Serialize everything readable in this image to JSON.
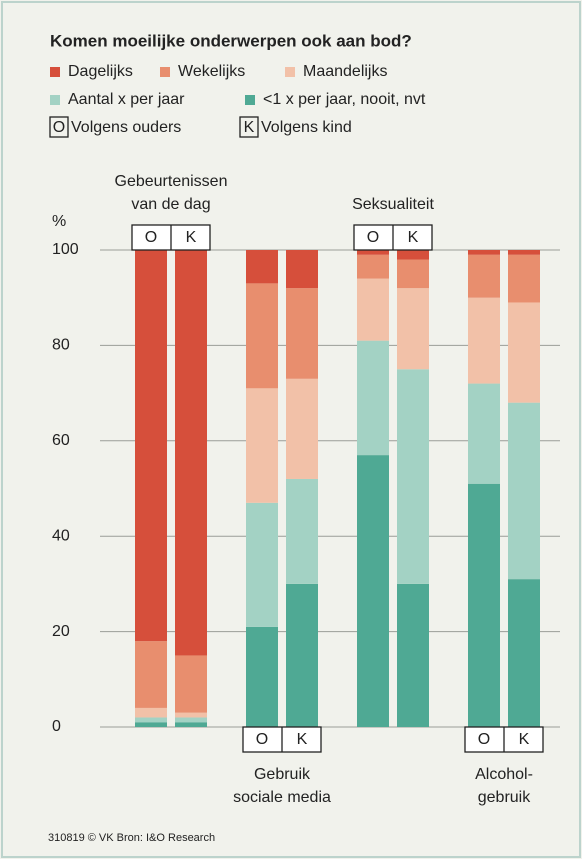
{
  "chart_data": {
    "type": "stacked_bar",
    "title": "Komen moeilijke onderwerpen ook aan bod?",
    "y_unit": "%",
    "ylim": [
      0,
      100
    ],
    "yticks": [
      0,
      20,
      40,
      60,
      80,
      100
    ],
    "grid": true,
    "subcategories": [
      "O",
      "K"
    ],
    "subcategory_names": [
      "Volgens ouders",
      "Volgens kind"
    ],
    "groups": [
      {
        "label": [
          "Gebeurtenissen",
          "van de dag"
        ],
        "label_position": "top"
      },
      {
        "label": [
          "Gebruik",
          "sociale media"
        ],
        "label_position": "bottom"
      },
      {
        "label": [
          "Seksualiteit"
        ],
        "label_position": "top"
      },
      {
        "label": [
          "Alcohol-",
          "gebruik"
        ],
        "label_position": "bottom"
      }
    ],
    "series": [
      {
        "name": "Dagelijks",
        "color": "#d64f3b",
        "values": [
          82,
          85,
          7,
          8,
          1,
          2,
          1,
          1
        ]
      },
      {
        "name": "Wekelijks",
        "color": "#e88e6e",
        "values": [
          14,
          12,
          22,
          19,
          5,
          6,
          9,
          10
        ]
      },
      {
        "name": "Maandelijks",
        "color": "#f2c1a8",
        "values": [
          2,
          1,
          24,
          21,
          13,
          17,
          18,
          21
        ]
      },
      {
        "name": "Aantal x per jaar",
        "color": "#a3d2c4",
        "values": [
          1,
          1,
          26,
          22,
          24,
          45,
          21,
          37
        ]
      },
      {
        "name": "<1 x per jaar, nooit, nvt",
        "color": "#4fa994",
        "values": [
          1,
          1,
          21,
          30,
          57,
          30,
          51,
          31
        ]
      }
    ],
    "source": "310819 © VK Bron: I&O Research"
  }
}
